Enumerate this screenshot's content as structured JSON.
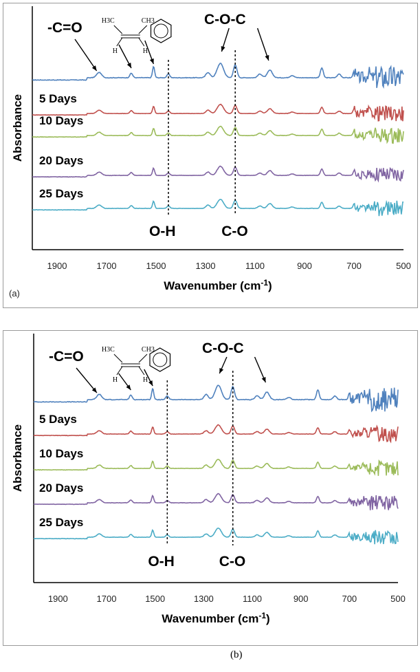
{
  "chart_data": [
    {
      "panel_label": "(a)",
      "type": "line",
      "xlabel_main": "Wavenumber (cm",
      "xlabel_sup": "-1",
      "xlabel_end": ")",
      "ylabel": "Absorbance",
      "xlim": [
        2000,
        500
      ],
      "x_reversed": true,
      "xticks": [
        1900,
        1700,
        1500,
        1300,
        1100,
        900,
        700,
        500
      ],
      "annotations": {
        "carbonyl": "-C=O",
        "ether": "C-O-C",
        "hydroxyl": "O-H",
        "co": "C-O",
        "mol_h3c": "H3C",
        "mol_ch3": "CH3",
        "mol_h1": "H",
        "mol_h2": "H"
      },
      "series": [
        {
          "name": "",
          "color": "#4f81bd"
        },
        {
          "name": "5 Days",
          "color": "#c0504d"
        },
        {
          "name": "10 Days",
          "color": "#9bbb59"
        },
        {
          "name": "20 Days",
          "color": "#8064a2"
        },
        {
          "name": "25 Days",
          "color": "#4bacc6"
        }
      ]
    },
    {
      "panel_label": "(b)",
      "type": "line",
      "xlabel_main": "Wavenumber (cm",
      "xlabel_sup": "-1",
      "xlabel_end": ")",
      "ylabel": "Absorbance",
      "xlim": [
        2000,
        500
      ],
      "x_reversed": true,
      "xticks": [
        1900,
        1700,
        1500,
        1300,
        1100,
        900,
        700,
        500
      ],
      "annotations": {
        "carbonyl": "-C=O",
        "ether": "C-O-C",
        "hydroxyl": "O-H",
        "co": "C-O",
        "mol_h3c": "H3C",
        "mol_ch3": "CH3",
        "mol_h1": "H",
        "mol_h2": "H"
      },
      "series": [
        {
          "name": "",
          "color": "#4f81bd"
        },
        {
          "name": "5 Days",
          "color": "#c0504d"
        },
        {
          "name": "10 Days",
          "color": "#9bbb59"
        },
        {
          "name": "20 Days",
          "color": "#8064a2"
        },
        {
          "name": "25 Days",
          "color": "#4bacc6"
        }
      ]
    }
  ]
}
